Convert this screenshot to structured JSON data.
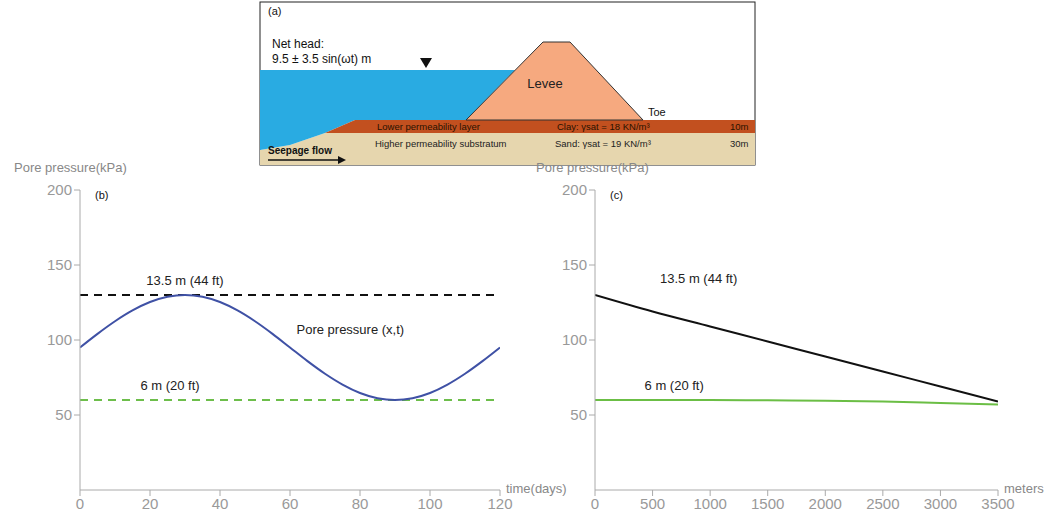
{
  "diagram": {
    "panel_label": "(a)",
    "net_head_label": "Net head:",
    "net_head_formula": "9.5 ± 3.5 sin(ωt) m",
    "structure": "Levee",
    "toe": "Toe",
    "flow": "Seepage flow",
    "layers": [
      {
        "name": "Lower permeability layer",
        "material": "Clay: γsat = 18 KN/m³",
        "thickness": "10m"
      },
      {
        "name": "Higher permeability substratum",
        "material": "Sand: γsat = 19 KN/m³",
        "thickness": "30m"
      }
    ]
  },
  "chart_data": [
    {
      "type": "line",
      "panel_label": "(b)",
      "y_label": "Pore pressure(kPa)",
      "x_label": "time(days)",
      "xlim": [
        0,
        120
      ],
      "xticks": [
        0,
        20,
        40,
        60,
        80,
        100,
        120
      ],
      "ylim": [
        0,
        200
      ],
      "yticks": [
        50,
        100,
        150,
        200
      ],
      "series": [
        {
          "name": "13.5 m (44 ft)",
          "color": "#111111",
          "line_style": "dashed",
          "x": [
            0,
            120
          ],
          "values": [
            130,
            130
          ]
        },
        {
          "name": "6 m (20 ft)",
          "color": "#6dbe4b",
          "line_style": "dashed",
          "x": [
            0,
            120
          ],
          "values": [
            60,
            60
          ]
        },
        {
          "name": "Pore pressure (x,t)",
          "color": "#3f51a5",
          "line_style": "solid",
          "x": [
            0,
            5,
            10,
            15,
            20,
            25,
            30,
            35,
            40,
            45,
            50,
            55,
            60,
            65,
            70,
            75,
            80,
            85,
            90,
            95,
            100,
            105,
            110,
            115,
            120
          ],
          "values": [
            95,
            104.1,
            112.5,
            119.7,
            125.3,
            128.8,
            130,
            128.8,
            125.3,
            119.7,
            112.5,
            104.1,
            95,
            85.9,
            77.5,
            70.3,
            64.7,
            61.2,
            60,
            61.2,
            64.7,
            70.3,
            77.5,
            85.9,
            95
          ]
        }
      ]
    },
    {
      "type": "line",
      "panel_label": "(c)",
      "y_label": "Pore pressure(kPa)",
      "x_label": "meters",
      "xlim": [
        0,
        3500
      ],
      "xticks": [
        0,
        500,
        1000,
        1500,
        2000,
        2500,
        3000,
        3500
      ],
      "ylim": [
        0,
        200
      ],
      "yticks": [
        50,
        100,
        150,
        200
      ],
      "series": [
        {
          "name": "13.5 m (44 ft)",
          "color": "#111111",
          "line_style": "solid",
          "x": [
            0,
            500,
            1000,
            1500,
            2000,
            2500,
            3000,
            3500
          ],
          "values": [
            130,
            119,
            109,
            99,
            89,
            79,
            69,
            59
          ]
        },
        {
          "name": "6 m (20 ft)",
          "color": "#6bbe45",
          "line_style": "solid",
          "x": [
            0,
            500,
            1000,
            1500,
            2000,
            2500,
            3000,
            3500
          ],
          "values": [
            60,
            60,
            60,
            59.8,
            59.5,
            59,
            58,
            57
          ]
        }
      ]
    }
  ]
}
